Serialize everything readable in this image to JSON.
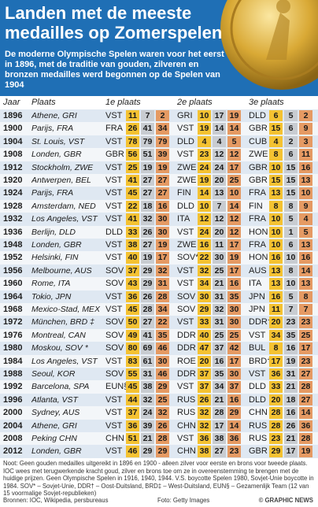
{
  "header": {
    "title": "Landen met de meeste medailles op Zomerspelen",
    "subtitle": "De moderne Olympische Spelen waren voor het eerst in 1896, met de traditie van gouden, zilveren en bronzen medailles werd begonnen op de Spelen van 1904"
  },
  "columns": {
    "jaar": "Jaar",
    "plaats": "Plaats",
    "p1": "1e plaats",
    "p2": "2e plaats",
    "p3": "3e plaats"
  },
  "colors": {
    "header_bg": "#1f6fb5",
    "gold": "#f4c232",
    "silver": "#c8ccd1",
    "bronze": "#e59a63"
  },
  "chart_data": {
    "type": "table",
    "rows": [
      {
        "year": "1896",
        "city": "Athene, GRI",
        "first": {
          "nation": "VST",
          "medals": [
            "11",
            "7",
            "2"
          ]
        },
        "second": {
          "nation": "GRI",
          "medals": [
            "10",
            "17",
            "19"
          ]
        },
        "third": {
          "nation": "DLD",
          "medals": [
            "6",
            "5",
            "2"
          ]
        }
      },
      {
        "year": "1900",
        "city": "Parijs, FRA",
        "first": {
          "nation": "FRA",
          "medals": [
            "26",
            "41",
            "34"
          ]
        },
        "second": {
          "nation": "VST",
          "medals": [
            "19",
            "14",
            "14"
          ]
        },
        "third": {
          "nation": "GBR",
          "medals": [
            "15",
            "6",
            "9"
          ]
        }
      },
      {
        "year": "1904",
        "city": "St. Louis, VST",
        "first": {
          "nation": "VST",
          "medals": [
            "78",
            "79",
            "79"
          ]
        },
        "second": {
          "nation": "DLD",
          "medals": [
            "4",
            "4",
            "5"
          ]
        },
        "third": {
          "nation": "CUB",
          "medals": [
            "4",
            "2",
            "3"
          ]
        }
      },
      {
        "year": "1908",
        "city": "Londen, GBR",
        "first": {
          "nation": "GBR",
          "medals": [
            "56",
            "51",
            "39"
          ]
        },
        "second": {
          "nation": "VST",
          "medals": [
            "23",
            "12",
            "12"
          ]
        },
        "third": {
          "nation": "ZWE",
          "medals": [
            "8",
            "6",
            "11"
          ]
        }
      },
      {
        "year": "1912",
        "city": "Stockholm, ZWE",
        "first": {
          "nation": "VST",
          "medals": [
            "25",
            "19",
            "19"
          ]
        },
        "second": {
          "nation": "ZWE",
          "medals": [
            "24",
            "24",
            "17"
          ]
        },
        "third": {
          "nation": "GBR",
          "medals": [
            "10",
            "15",
            "16"
          ]
        }
      },
      {
        "year": "1920",
        "city": "Antwerpen, BEL",
        "first": {
          "nation": "VST",
          "medals": [
            "41",
            "27",
            "27"
          ]
        },
        "second": {
          "nation": "ZWE",
          "medals": [
            "19",
            "20",
            "25"
          ]
        },
        "third": {
          "nation": "GBR",
          "medals": [
            "15",
            "15",
            "13"
          ]
        }
      },
      {
        "year": "1924",
        "city": "Parijs, FRA",
        "first": {
          "nation": "VST",
          "medals": [
            "45",
            "27",
            "27"
          ]
        },
        "second": {
          "nation": "FIN",
          "medals": [
            "14",
            "13",
            "10"
          ]
        },
        "third": {
          "nation": "FRA",
          "medals": [
            "13",
            "15",
            "10"
          ]
        }
      },
      {
        "year": "1928",
        "city": "Amsterdam, NED",
        "first": {
          "nation": "VST",
          "medals": [
            "22",
            "18",
            "16"
          ]
        },
        "second": {
          "nation": "DLD",
          "medals": [
            "10",
            "7",
            "14"
          ]
        },
        "third": {
          "nation": "FIN",
          "medals": [
            "8",
            "8",
            "9"
          ]
        }
      },
      {
        "year": "1932",
        "city": "Los Angeles, VST",
        "first": {
          "nation": "VST",
          "medals": [
            "41",
            "32",
            "30"
          ]
        },
        "second": {
          "nation": "ITA",
          "medals": [
            "12",
            "12",
            "12"
          ]
        },
        "third": {
          "nation": "FRA",
          "medals": [
            "10",
            "5",
            "4"
          ]
        }
      },
      {
        "year": "1936",
        "city": "Berlijn, DLD",
        "first": {
          "nation": "DLD",
          "medals": [
            "33",
            "26",
            "30"
          ]
        },
        "second": {
          "nation": "VST",
          "medals": [
            "24",
            "20",
            "12"
          ]
        },
        "third": {
          "nation": "HON",
          "medals": [
            "10",
            "1",
            "5"
          ]
        }
      },
      {
        "year": "1948",
        "city": "Londen, GBR",
        "first": {
          "nation": "VST",
          "medals": [
            "38",
            "27",
            "19"
          ]
        },
        "second": {
          "nation": "ZWE",
          "medals": [
            "16",
            "11",
            "17"
          ]
        },
        "third": {
          "nation": "FRA",
          "medals": [
            "10",
            "6",
            "13"
          ]
        }
      },
      {
        "year": "1952",
        "city": "Helsinki, FIN",
        "first": {
          "nation": "VST",
          "medals": [
            "40",
            "19",
            "17"
          ]
        },
        "second": {
          "nation": "SOV*",
          "medals": [
            "22",
            "30",
            "19"
          ]
        },
        "third": {
          "nation": "HON",
          "medals": [
            "16",
            "10",
            "16"
          ]
        }
      },
      {
        "year": "1956",
        "city": "Melbourne, AUS",
        "first": {
          "nation": "SOV",
          "medals": [
            "37",
            "29",
            "32"
          ]
        },
        "second": {
          "nation": "VST",
          "medals": [
            "32",
            "25",
            "17"
          ]
        },
        "third": {
          "nation": "AUS",
          "medals": [
            "13",
            "8",
            "14"
          ]
        }
      },
      {
        "year": "1960",
        "city": "Rome, ITA",
        "first": {
          "nation": "SOV",
          "medals": [
            "43",
            "29",
            "31"
          ]
        },
        "second": {
          "nation": "VST",
          "medals": [
            "34",
            "21",
            "16"
          ]
        },
        "third": {
          "nation": "ITA",
          "medals": [
            "13",
            "10",
            "13"
          ]
        }
      },
      {
        "year": "1964",
        "city": "Tokio, JPN",
        "first": {
          "nation": "VST",
          "medals": [
            "36",
            "26",
            "28"
          ]
        },
        "second": {
          "nation": "SOV",
          "medals": [
            "30",
            "31",
            "35"
          ]
        },
        "third": {
          "nation": "JPN",
          "medals": [
            "16",
            "5",
            "8"
          ]
        }
      },
      {
        "year": "1968",
        "city": "Mexico-Stad, MEX",
        "first": {
          "nation": "VST",
          "medals": [
            "45",
            "28",
            "34"
          ]
        },
        "second": {
          "nation": "SOV",
          "medals": [
            "29",
            "32",
            "30"
          ]
        },
        "third": {
          "nation": "JPN",
          "medals": [
            "11",
            "7",
            "7"
          ]
        }
      },
      {
        "year": "1972",
        "city": "München, BRD ‡",
        "first": {
          "nation": "SOV",
          "medals": [
            "50",
            "27",
            "22"
          ]
        },
        "second": {
          "nation": "VST",
          "medals": [
            "33",
            "31",
            "30"
          ]
        },
        "third": {
          "nation": "DDR†",
          "medals": [
            "20",
            "23",
            "23"
          ]
        }
      },
      {
        "year": "1976",
        "city": "Montreal, CAN",
        "first": {
          "nation": "SOV",
          "medals": [
            "49",
            "41",
            "35"
          ]
        },
        "second": {
          "nation": "DDR",
          "medals": [
            "40",
            "25",
            "25"
          ]
        },
        "third": {
          "nation": "VST",
          "medals": [
            "34",
            "35",
            "25"
          ]
        }
      },
      {
        "year": "1980",
        "city": "Moskou, SOV *",
        "first": {
          "nation": "SOV",
          "medals": [
            "80",
            "69",
            "46"
          ]
        },
        "second": {
          "nation": "DDR",
          "medals": [
            "47",
            "37",
            "42"
          ]
        },
        "third": {
          "nation": "BUL",
          "medals": [
            "8",
            "16",
            "17"
          ]
        }
      },
      {
        "year": "1984",
        "city": "Los Angeles, VST",
        "first": {
          "nation": "VST",
          "medals": [
            "83",
            "61",
            "30"
          ]
        },
        "second": {
          "nation": "ROE",
          "medals": [
            "20",
            "16",
            "17"
          ]
        },
        "third": {
          "nation": "BRD†",
          "medals": [
            "17",
            "19",
            "23"
          ]
        }
      },
      {
        "year": "1988",
        "city": "Seoul, KOR",
        "first": {
          "nation": "SOV",
          "medals": [
            "55",
            "31",
            "46"
          ]
        },
        "second": {
          "nation": "DDR",
          "medals": [
            "37",
            "35",
            "30"
          ]
        },
        "third": {
          "nation": "VST",
          "medals": [
            "36",
            "31",
            "27"
          ]
        }
      },
      {
        "year": "1992",
        "city": "Barcelona, SPA",
        "first": {
          "nation": "EUN§",
          "medals": [
            "45",
            "38",
            "29"
          ]
        },
        "second": {
          "nation": "VST",
          "medals": [
            "37",
            "34",
            "37"
          ]
        },
        "third": {
          "nation": "DLD",
          "medals": [
            "33",
            "21",
            "28"
          ]
        }
      },
      {
        "year": "1996",
        "city": "Atlanta, VST",
        "first": {
          "nation": "VST",
          "medals": [
            "44",
            "32",
            "25"
          ]
        },
        "second": {
          "nation": "RUS",
          "medals": [
            "26",
            "21",
            "16"
          ]
        },
        "third": {
          "nation": "DLD",
          "medals": [
            "20",
            "18",
            "27"
          ]
        }
      },
      {
        "year": "2000",
        "city": "Sydney, AUS",
        "first": {
          "nation": "VST",
          "medals": [
            "37",
            "24",
            "32"
          ]
        },
        "second": {
          "nation": "RUS",
          "medals": [
            "32",
            "28",
            "29"
          ]
        },
        "third": {
          "nation": "CHN",
          "medals": [
            "28",
            "16",
            "14"
          ]
        }
      },
      {
        "year": "2004",
        "city": "Athene, GRI",
        "first": {
          "nation": "VST",
          "medals": [
            "36",
            "39",
            "26"
          ]
        },
        "second": {
          "nation": "CHN",
          "medals": [
            "32",
            "17",
            "14"
          ]
        },
        "third": {
          "nation": "RUS",
          "medals": [
            "28",
            "26",
            "36"
          ]
        }
      },
      {
        "year": "2008",
        "city": "Peking CHN",
        "first": {
          "nation": "CHN",
          "medals": [
            "51",
            "21",
            "28"
          ]
        },
        "second": {
          "nation": "VST",
          "medals": [
            "36",
            "38",
            "36"
          ]
        },
        "third": {
          "nation": "RUS",
          "medals": [
            "23",
            "21",
            "28"
          ]
        }
      },
      {
        "year": "2012",
        "city": "Londen, GBR",
        "first": {
          "nation": "VST",
          "medals": [
            "46",
            "29",
            "29"
          ]
        },
        "second": {
          "nation": "CHN",
          "medals": [
            "38",
            "27",
            "23"
          ]
        },
        "third": {
          "nation": "GBR",
          "medals": [
            "29",
            "17",
            "19"
          ]
        }
      }
    ]
  },
  "footer": {
    "note": "Noot: Geen gouden medailles uitgereikt in 1896 en 1900 - alleen zilver voor eerste en brons voor tweede plaats. IOC wees met terugwerkende kracht goud, zilver en brons toe om ze in overeenstemming te brengen met de huidige prijzen. Geen Olympische Spelen in 1916, 1940, 1944. V.S. boycotte Spelen 1980, Sovjet-Unie boycotte in 1984. SOV* – Sovjet-Unie, DDR† – Oost-Duitsland, BRD‡ – West-Duitsland, EUN§ – Gezamenlijk Team (12 van 15 voormalige Sovjet-republieken)",
    "sources": "Bronnen: IOC, Wikipedia, persbureaus",
    "photo": "Foto: Getty Images",
    "brand": "© GRAPHIC NEWS"
  }
}
